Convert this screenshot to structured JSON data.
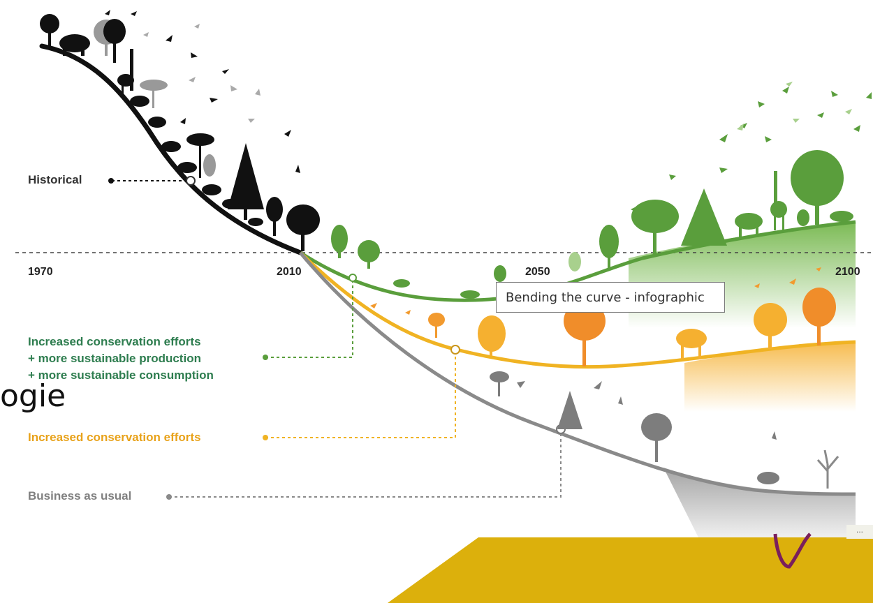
{
  "timeline": {
    "years": [
      "1970",
      "2010",
      "2050",
      "2100"
    ]
  },
  "scenarios": {
    "historical": "Historical",
    "green_line1": "Increased conservation efforts",
    "green_line2": "+ more sustainable production",
    "green_line3": "+ more sustainable consumption",
    "orange": "Increased conservation efforts",
    "grey": "Business as usual"
  },
  "tooltip": "Bending the curve - infographic",
  "background_fragment": "ogie",
  "corner_control": "...",
  "colors": {
    "historical": "#111111",
    "green": "#5a9e3c",
    "orange": "#f0b323",
    "grey": "#8a8a8a",
    "label_green": "#2e7d4f",
    "label_orange": "#e8a21a",
    "label_grey": "#808080",
    "banner": "#dcb00c",
    "accent_purple": "#7a1f5c"
  },
  "icons": [
    "tree-icon",
    "bird-icon",
    "elephant-icon",
    "giraffe-icon",
    "camel-icon",
    "deer-icon"
  ]
}
